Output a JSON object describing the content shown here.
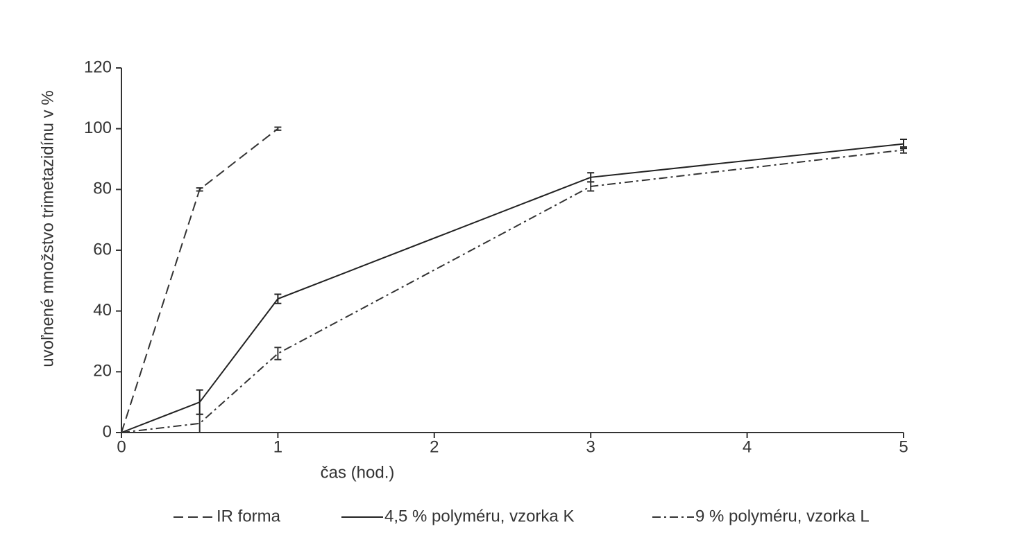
{
  "chart_data": {
    "type": "line",
    "x_label": "čas (hod.)",
    "y_label": "uvoľnené množstvo trimetazidínu v %",
    "xlim": [
      0,
      5
    ],
    "xticks": [
      0,
      1,
      2,
      3,
      4,
      5
    ],
    "ylim": [
      0,
      120
    ],
    "yticks": [
      0,
      20,
      40,
      60,
      80,
      100,
      120
    ],
    "legend": "bottom",
    "series": [
      {
        "name": "IR forma",
        "color": "#333333",
        "style": "dashed",
        "x": [
          0,
          0.5,
          1
        ],
        "values": [
          0,
          80,
          100
        ],
        "errors": [
          0,
          0.5,
          0.5
        ]
      },
      {
        "name": "4,5 % polyméru, vzorka K",
        "color": "#222222",
        "style": "solid",
        "x": [
          0,
          0.5,
          1,
          3,
          5
        ],
        "values": [
          0,
          10,
          44,
          84,
          95
        ],
        "errors": [
          0,
          4,
          1.5,
          1.5,
          1.5
        ]
      },
      {
        "name": "9 % polyméru, vzorka L",
        "color": "#333333",
        "style": "dashdot",
        "x": [
          0,
          0.5,
          1,
          3,
          5
        ],
        "values": [
          0,
          3,
          26,
          81,
          93
        ],
        "errors": [
          0,
          3,
          2,
          1.5,
          1
        ]
      }
    ]
  }
}
